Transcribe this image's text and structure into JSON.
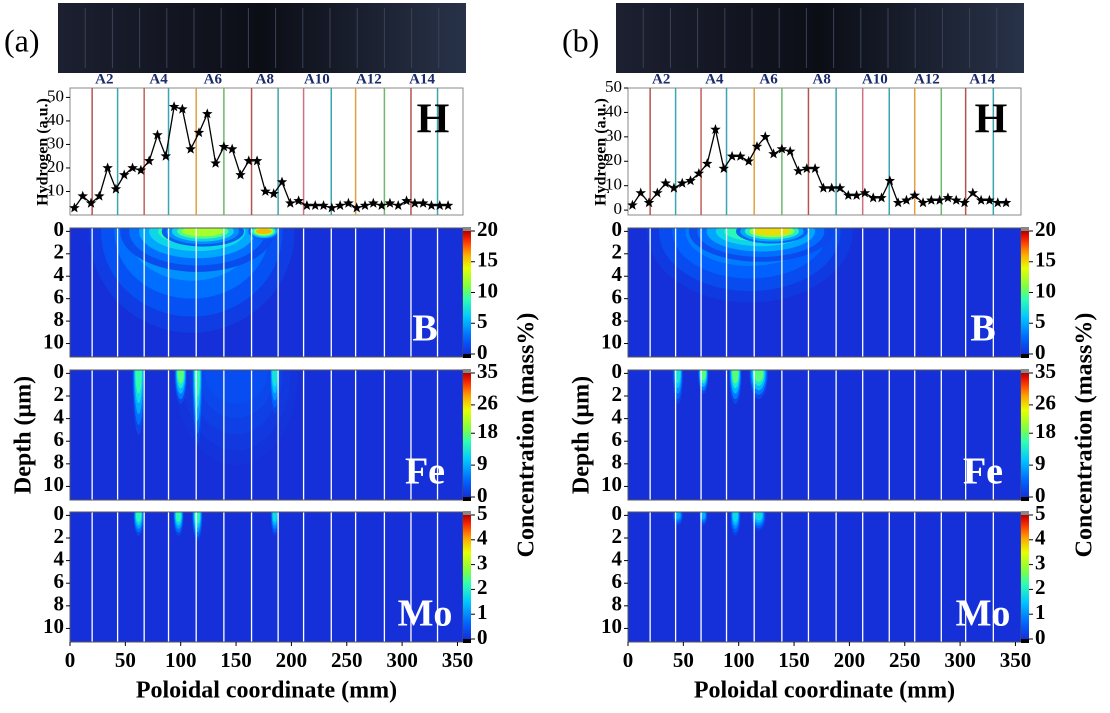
{
  "chart_data": [
    {
      "type": "line",
      "panel_label": "(a)",
      "annotation": "H",
      "ylabel": "Hydrogen (a.u.)",
      "tile_labels": [
        "A2",
        "A4",
        "A6",
        "A8",
        "A10",
        "A12",
        "A14"
      ],
      "tile_label_x": [
        31,
        80,
        129,
        176,
        223,
        270,
        318
      ],
      "tile_boundaries": [
        20,
        43,
        67,
        89,
        114,
        139,
        164,
        188,
        211,
        236,
        258,
        284,
        308,
        332
      ],
      "boundary_colors": [
        "#b5534f",
        "#3aa6b0",
        "#c0605a",
        "#3aa6b0",
        "#e0a040",
        "#6cb86c",
        "#b5534f",
        "#3aa6b0",
        "#d07080",
        "#3aa6b0",
        "#e0a040",
        "#6cb86c",
        "#b5534f",
        "#3aa6b0"
      ],
      "x": [
        4,
        11.5,
        19,
        26.5,
        34,
        41.5,
        49,
        56.5,
        64,
        71.5,
        79,
        86.5,
        94,
        101.5,
        109,
        116.5,
        124,
        131.5,
        139,
        146.5,
        154,
        161.5,
        169,
        176.5,
        184,
        191.5,
        199,
        206.5,
        214,
        221.5,
        229,
        236.5,
        244,
        251.5,
        259,
        266.5,
        274,
        281.5,
        289,
        296.5,
        304,
        311.5,
        319,
        326.5,
        334,
        341.5
      ],
      "values": [
        3,
        8,
        5,
        8,
        20,
        11,
        17,
        20,
        19,
        23,
        34,
        25,
        46,
        45,
        28,
        35,
        43,
        22,
        29,
        28,
        17,
        23,
        23,
        10,
        9,
        14,
        5,
        6,
        4,
        4,
        4,
        3,
        4,
        5,
        3,
        4,
        5,
        4,
        5,
        4,
        6,
        5,
        5,
        4,
        4,
        4
      ],
      "color": "#000000",
      "xlim": [
        0,
        355
      ],
      "ylim": [
        0,
        54
      ],
      "yticks": [
        10,
        20,
        30,
        40,
        50
      ]
    },
    {
      "type": "contour",
      "annotation": "B",
      "colormap": "jet",
      "xlim": [
        0,
        355
      ],
      "ylim": [
        11.2,
        -0.3
      ],
      "yticks": [
        0,
        2,
        4,
        6,
        8,
        10
      ],
      "clim": [
        0,
        20
      ],
      "cticks": [
        0,
        5,
        10,
        15,
        20
      ],
      "hotspots": [
        {
          "x": 110,
          "width": 200,
          "depth": 10,
          "value": 6
        },
        {
          "x": 115,
          "width": 150,
          "depth": 4,
          "value": 10
        },
        {
          "x": 120,
          "width": 80,
          "depth": 1.5,
          "value": 14
        },
        {
          "x": 175,
          "width": 30,
          "depth": 0.8,
          "value": 18
        }
      ]
    },
    {
      "type": "contour",
      "annotation": "Fe",
      "ylabel": "Depth (μm)",
      "colorbar_label": "Concentration (mass%)",
      "colormap": "jet",
      "xlim": [
        0,
        355
      ],
      "ylim": [
        11.2,
        -0.3
      ],
      "yticks": [
        0,
        2,
        4,
        6,
        8,
        10
      ],
      "clim": [
        0,
        35
      ],
      "cticks": [
        0,
        9,
        18,
        26,
        35
      ],
      "hotspots": [
        {
          "x": 150,
          "width": 120,
          "depth": 9,
          "value": 3
        },
        {
          "x": 62,
          "width": 12,
          "depth": 6,
          "value": 18
        },
        {
          "x": 100,
          "width": 12,
          "depth": 3,
          "value": 20
        },
        {
          "x": 115,
          "width": 10,
          "depth": 7,
          "value": 18
        },
        {
          "x": 185,
          "width": 10,
          "depth": 4,
          "value": 15
        }
      ]
    },
    {
      "type": "contour",
      "annotation": "Mo",
      "xlabel": "Poloidal coordinate (mm)",
      "colormap": "jet",
      "xlim": [
        0,
        355
      ],
      "ylim": [
        11.2,
        -0.3
      ],
      "yticks": [
        0,
        2,
        4,
        6,
        8,
        10
      ],
      "xticks": [
        0,
        50,
        100,
        150,
        200,
        250,
        300,
        350
      ],
      "clim": [
        0,
        5
      ],
      "cticks": [
        0,
        1,
        2,
        3,
        4,
        5
      ],
      "hotspots": [
        {
          "x": 62,
          "width": 10,
          "depth": 2,
          "value": 2.5
        },
        {
          "x": 98,
          "width": 10,
          "depth": 2,
          "value": 2.5
        },
        {
          "x": 115,
          "width": 10,
          "depth": 2.5,
          "value": 2.5
        },
        {
          "x": 185,
          "width": 8,
          "depth": 2,
          "value": 2
        }
      ]
    },
    {
      "type": "line",
      "panel_label": "(b)",
      "annotation": "H",
      "ylabel": "Hydrogen (a.u.)",
      "tile_labels": [
        "A2",
        "A4",
        "A6",
        "A8",
        "A10",
        "A12",
        "A14"
      ],
      "tile_label_x": [
        30,
        78,
        127,
        175,
        223,
        270,
        320
      ],
      "tile_boundaries": [
        20,
        43,
        66,
        89,
        114,
        139,
        163,
        188,
        212,
        236,
        259,
        283,
        305,
        330
      ],
      "boundary_colors": [
        "#b5534f",
        "#3aa6b0",
        "#c0605a",
        "#3aa6b0",
        "#e0a040",
        "#6cb86c",
        "#b5534f",
        "#3aa6b0",
        "#d07080",
        "#3aa6b0",
        "#e0a040",
        "#6cb86c",
        "#b5534f",
        "#3aa6b0"
      ],
      "x": [
        4,
        11.5,
        19,
        26.5,
        34,
        41.5,
        49,
        56.5,
        64,
        71.5,
        79,
        86.5,
        94,
        101.5,
        109,
        116.5,
        124,
        131.5,
        139,
        146.5,
        154,
        161.5,
        169,
        176.5,
        184,
        191.5,
        199,
        206.5,
        214,
        221.5,
        229,
        236.5,
        244,
        251.5,
        259,
        266.5,
        274,
        281.5,
        289,
        296.5,
        304,
        311.5,
        319,
        326.5,
        334,
        341.5
      ],
      "values": [
        2,
        7,
        3,
        7,
        11,
        9,
        11,
        12,
        15,
        19,
        33,
        17,
        22,
        22,
        20,
        26,
        30,
        23,
        25,
        24,
        16,
        17,
        17,
        9,
        9,
        9,
        6,
        6,
        7,
        5,
        5,
        12,
        3,
        4,
        6,
        3,
        4,
        4,
        5,
        4,
        3,
        7,
        4,
        4,
        3,
        3
      ],
      "color": "#000000",
      "xlim": [
        0,
        355
      ],
      "ylim": [
        -2,
        50
      ],
      "yticks": [
        0,
        10,
        20,
        30,
        40,
        50
      ]
    },
    {
      "type": "contour",
      "annotation": "B",
      "colormap": "jet",
      "xlim": [
        0,
        355
      ],
      "ylim": [
        11.2,
        -0.3
      ],
      "yticks": [
        0,
        2,
        4,
        6,
        8,
        10
      ],
      "clim": [
        0,
        20
      ],
      "cticks": [
        0,
        5,
        10,
        15,
        20
      ],
      "hotspots": [
        {
          "x": 110,
          "width": 200,
          "depth": 7,
          "value": 5
        },
        {
          "x": 120,
          "width": 140,
          "depth": 3,
          "value": 10
        },
        {
          "x": 130,
          "width": 70,
          "depth": 1.2,
          "value": 17
        }
      ]
    },
    {
      "type": "contour",
      "annotation": "Fe",
      "ylabel": "Depth (μm)",
      "colorbar_label": "Concentration (mass%)",
      "colormap": "jet",
      "xlim": [
        0,
        355
      ],
      "ylim": [
        11.2,
        -0.3
      ],
      "yticks": [
        0,
        2,
        4,
        6,
        8,
        10
      ],
      "clim": [
        0,
        35
      ],
      "cticks": [
        0,
        9,
        18,
        26,
        35
      ],
      "hotspots": [
        {
          "x": 45,
          "width": 10,
          "depth": 3,
          "value": 15
        },
        {
          "x": 68,
          "width": 10,
          "depth": 2,
          "value": 20
        },
        {
          "x": 97,
          "width": 12,
          "depth": 3,
          "value": 20
        },
        {
          "x": 118,
          "width": 18,
          "depth": 2.5,
          "value": 20
        }
      ]
    },
    {
      "type": "contour",
      "annotation": "Mo",
      "xlabel": "Poloidal coordinate (mm)",
      "colormap": "jet",
      "xlim": [
        0,
        355
      ],
      "ylim": [
        11.2,
        -0.3
      ],
      "yticks": [
        0,
        2,
        4,
        6,
        8,
        10
      ],
      "xticks": [
        0,
        50,
        100,
        150,
        200,
        250,
        300,
        350
      ],
      "clim": [
        0,
        5
      ],
      "cticks": [
        0,
        1,
        2,
        3,
        4,
        5
      ],
      "hotspots": [
        {
          "x": 45,
          "width": 10,
          "depth": 1,
          "value": 1.5
        },
        {
          "x": 68,
          "width": 8,
          "depth": 1,
          "value": 1.5
        },
        {
          "x": 97,
          "width": 10,
          "depth": 2,
          "value": 2
        },
        {
          "x": 118,
          "width": 14,
          "depth": 1.5,
          "value": 2
        }
      ]
    }
  ]
}
